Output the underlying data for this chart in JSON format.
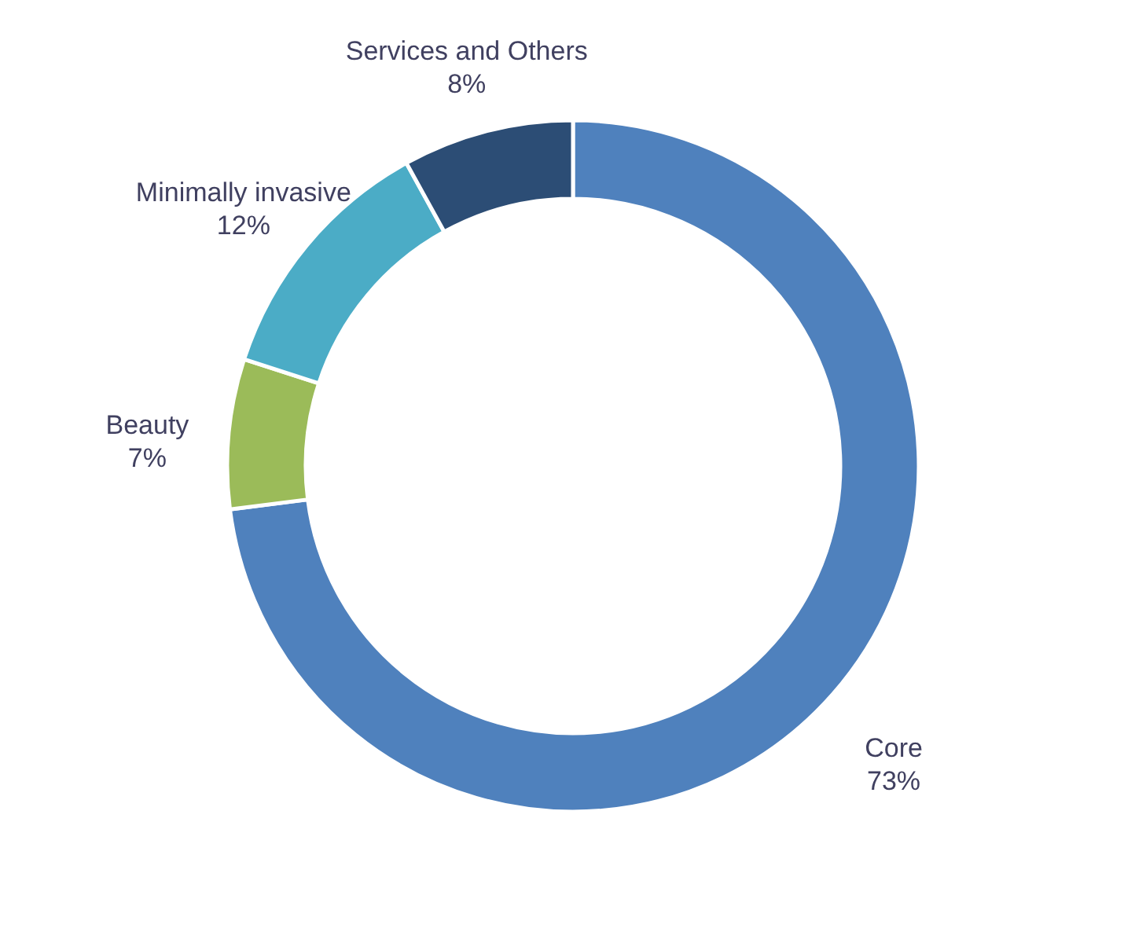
{
  "chart_data": {
    "type": "donut",
    "categories": [
      "Core",
      "Beauty",
      "Minimally invasive",
      "Services and Others"
    ],
    "values": [
      73,
      7,
      12,
      8
    ],
    "colors": [
      "#4f81bd",
      "#9bbb59",
      "#4bacc6",
      "#2c4d75"
    ],
    "value_labels": [
      "73%",
      "7%",
      "12%",
      "8%"
    ]
  }
}
